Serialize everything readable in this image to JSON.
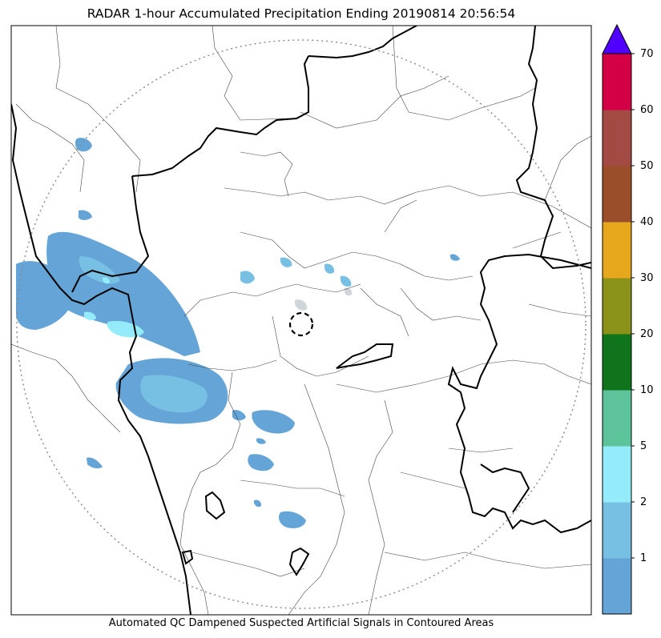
{
  "title": "RADAR 1-hour Accumulated Precipitation Ending 20190814 20:56:54",
  "footer": "Automated QC Dampened Suspected Artificial Signals in Contoured Areas",
  "colorbar": {
    "bins": [
      {
        "from": 0,
        "to": 1,
        "color": "#64a4d6"
      },
      {
        "from": 1,
        "to": 2,
        "color": "#77bfe3"
      },
      {
        "from": 2,
        "to": 5,
        "color": "#94ecfa"
      },
      {
        "from": 5,
        "to": 10,
        "color": "#5cc39b"
      },
      {
        "from": 10,
        "to": 20,
        "color": "#0f741c"
      },
      {
        "from": 20,
        "to": 30,
        "color": "#8a9219"
      },
      {
        "from": 30,
        "to": 40,
        "color": "#e6a71d"
      },
      {
        "from": 40,
        "to": 50,
        "color": "#9a4f2a"
      },
      {
        "from": 50,
        "to": 60,
        "color": "#a44a45"
      },
      {
        "from": 60,
        "to": 70,
        "color": "#d30046"
      }
    ],
    "tick_labels": [
      "1",
      "2",
      "5",
      "10",
      "20",
      "30",
      "40",
      "50",
      "60",
      "70"
    ],
    "extend_color": "#5000ff"
  },
  "map": {
    "range_ring": "dotted circle",
    "radar_site_marker": "dashed circle",
    "qc_contour_style": "thick dashed"
  }
}
